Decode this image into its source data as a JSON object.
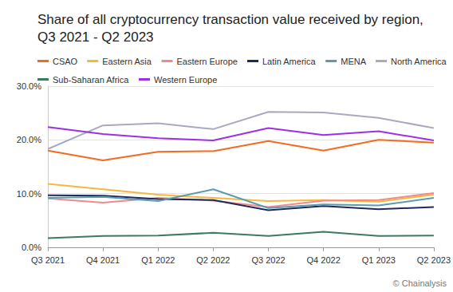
{
  "chart_data": {
    "type": "line",
    "title": "Share of all cryptocurrency transaction value received by region,\nQ3 2021 - Q2 2023",
    "source": "© Chainalysis",
    "categories": [
      "Q3 2021",
      "Q4 2021",
      "Q1 2022",
      "Q2 2022",
      "Q3 2022",
      "Q4 2022",
      "Q1 2023",
      "Q2 2023"
    ],
    "series": [
      {
        "name": "CSAO",
        "color": "#f26b21",
        "values": [
          18.0,
          16.2,
          17.8,
          17.9,
          19.8,
          18.0,
          20.0,
          19.5
        ]
      },
      {
        "name": "Eastern Asia",
        "color": "#f5b83d",
        "values": [
          11.8,
          10.8,
          9.8,
          9.2,
          8.6,
          8.8,
          8.5,
          9.8
        ]
      },
      {
        "name": "Eastern Europe",
        "color": "#f08a8a",
        "values": [
          9.1,
          8.3,
          9.2,
          8.7,
          7.5,
          8.7,
          8.8,
          10.1
        ]
      },
      {
        "name": "Latin America",
        "color": "#1f2a5c",
        "values": [
          9.7,
          9.6,
          9.0,
          8.8,
          6.9,
          7.7,
          7.1,
          7.5
        ]
      },
      {
        "name": "MENA",
        "color": "#5a9bb0",
        "values": [
          9.2,
          9.4,
          8.6,
          10.8,
          7.3,
          8.0,
          7.8,
          9.2
        ]
      },
      {
        "name": "North America",
        "color": "#a9a9c0",
        "values": [
          18.3,
          22.7,
          23.1,
          22.0,
          25.2,
          25.1,
          24.1,
          22.2
        ]
      },
      {
        "name": "Sub-Saharan Africa",
        "color": "#3d7a5e",
        "values": [
          1.7,
          2.1,
          2.2,
          2.7,
          2.1,
          2.9,
          2.1,
          2.2
        ]
      },
      {
        "name": "Western Europe",
        "color": "#9b30e8",
        "values": [
          22.4,
          21.1,
          20.3,
          19.9,
          22.2,
          20.9,
          21.6,
          19.9
        ]
      }
    ],
    "ylim": [
      0,
      30
    ],
    "yticks": [
      {
        "value": 0,
        "label": "0.0%"
      },
      {
        "value": 10,
        "label": "10.0%"
      },
      {
        "value": 20,
        "label": "20.0%"
      },
      {
        "value": 30,
        "label": "30.0%"
      }
    ],
    "grid": true,
    "legend": "top"
  }
}
